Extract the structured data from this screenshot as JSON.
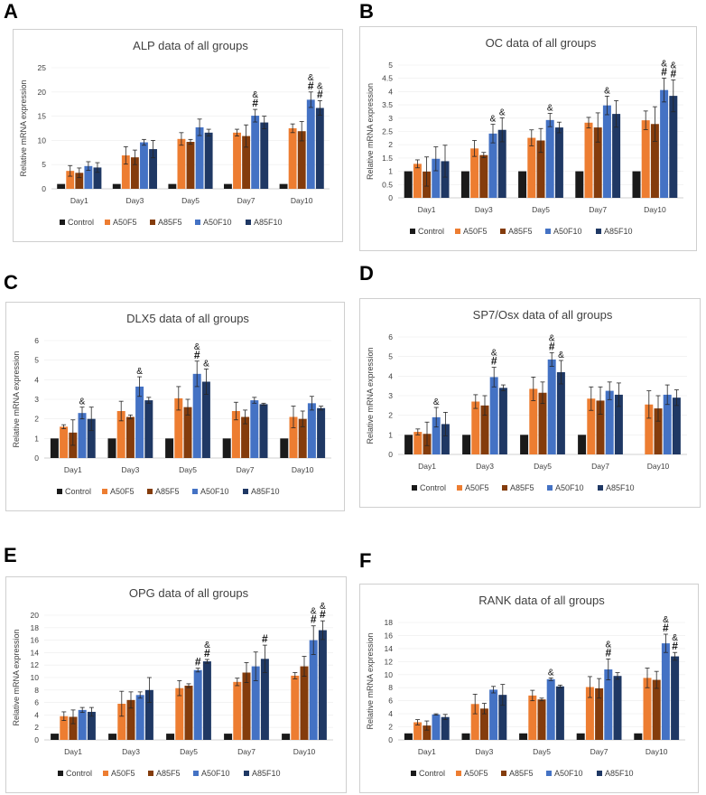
{
  "panels": [
    "A",
    "B",
    "C",
    "D",
    "E",
    "F"
  ],
  "colors": {
    "Control": "#1a1a1a",
    "A50F5": "#ed7d31",
    "A85F5": "#843c0c",
    "A50F10": "#4472c4",
    "A85F10": "#1f3864",
    "axis": "#d0d0d0",
    "text": "#404040",
    "error": "#262626"
  },
  "chart_data": [
    {
      "panel": "A",
      "type": "bar",
      "title": "ALP data of all groups",
      "ylabel": "Relative mRNA expression",
      "xlabel": "",
      "ylim": [
        0,
        25
      ],
      "yticks": [
        "0",
        "5",
        "10",
        "15",
        "20",
        "25"
      ],
      "categories": [
        "Day1",
        "Day3",
        "Day5",
        "Day7",
        "Day10"
      ],
      "series": [
        {
          "name": "Control",
          "values": [
            1,
            1,
            1,
            1,
            1
          ],
          "errors": [
            0,
            0,
            0,
            0,
            0
          ]
        },
        {
          "name": "A50F5",
          "values": [
            3.7,
            6.9,
            10.3,
            11.6,
            12.5
          ],
          "errors": [
            1.1,
            1.8,
            1.3,
            0.7,
            0.9
          ]
        },
        {
          "name": "A85F5",
          "values": [
            3.3,
            6.5,
            9.7,
            10.9,
            11.9
          ],
          "errors": [
            1.0,
            1.5,
            0.5,
            2.3,
            2.0
          ]
        },
        {
          "name": "A50F10",
          "values": [
            4.7,
            9.6,
            12.7,
            15.1,
            18.4
          ],
          "errors": [
            0.9,
            0.6,
            1.7,
            1.3,
            1.6
          ]
        },
        {
          "name": "A85F10",
          "values": [
            4.4,
            8.2,
            11.6,
            13.7,
            16.7
          ],
          "errors": [
            1.0,
            1.8,
            0.7,
            1.3,
            1.5
          ]
        }
      ],
      "annotations": [
        {
          "category": "Day7",
          "series": "A50F10",
          "text": "#"
        },
        {
          "category": "Day7",
          "series": "A50F10",
          "text": "&"
        },
        {
          "category": "Day10",
          "series": "A50F10",
          "text": "#"
        },
        {
          "category": "Day10",
          "series": "A50F10",
          "text": "&"
        },
        {
          "category": "Day10",
          "series": "A85F10",
          "text": "#"
        },
        {
          "category": "Day10",
          "series": "A85F10",
          "text": "&"
        }
      ]
    },
    {
      "panel": "B",
      "type": "bar",
      "title": "OC data of all groups",
      "ylabel": "Relative mRNA expression",
      "xlabel": "",
      "ylim": [
        0,
        5
      ],
      "yticks": [
        "0",
        "0.5",
        "1",
        "1.5",
        "2",
        "2.5",
        "3",
        "3.5",
        "4",
        "4.5",
        "5"
      ],
      "categories": [
        "Day1",
        "Day3",
        "Day5",
        "Day7",
        "Day10"
      ],
      "series": [
        {
          "name": "Control",
          "values": [
            1,
            1,
            1,
            1,
            1
          ],
          "errors": [
            0,
            0,
            0,
            0,
            0
          ]
        },
        {
          "name": "A50F5",
          "values": [
            1.28,
            1.86,
            2.26,
            2.83,
            2.92
          ],
          "errors": [
            0.15,
            0.3,
            0.3,
            0.2,
            0.35
          ]
        },
        {
          "name": "A85F5",
          "values": [
            0.99,
            1.61,
            2.16,
            2.65,
            2.78
          ],
          "errors": [
            0.55,
            0.1,
            0.45,
            0.55,
            0.65
          ]
        },
        {
          "name": "A50F10",
          "values": [
            1.47,
            2.42,
            2.93,
            3.48,
            4.06
          ],
          "errors": [
            0.45,
            0.35,
            0.25,
            0.35,
            0.45
          ]
        },
        {
          "name": "A85F10",
          "values": [
            1.38,
            2.56,
            2.65,
            3.16,
            3.84
          ],
          "errors": [
            0.6,
            0.45,
            0.2,
            0.5,
            0.6
          ]
        }
      ],
      "annotations": [
        {
          "category": "Day3",
          "series": "A50F10",
          "text": "&"
        },
        {
          "category": "Day3",
          "series": "A85F10",
          "text": "&"
        },
        {
          "category": "Day5",
          "series": "A50F10",
          "text": "&"
        },
        {
          "category": "Day7",
          "series": "A50F10",
          "text": "&"
        },
        {
          "category": "Day10",
          "series": "A50F10",
          "text": "#"
        },
        {
          "category": "Day10",
          "series": "A50F10",
          "text": "&"
        },
        {
          "category": "Day10",
          "series": "A85F10",
          "text": "#"
        },
        {
          "category": "Day10",
          "series": "A85F10",
          "text": "&"
        }
      ]
    },
    {
      "panel": "C",
      "type": "bar",
      "title": "DLX5 data of all groups",
      "ylabel": "Relative mRNA expression",
      "xlabel": "",
      "ylim": [
        0,
        6
      ],
      "yticks": [
        "0",
        "1",
        "2",
        "3",
        "4",
        "5",
        "6"
      ],
      "categories": [
        "Day1",
        "Day3",
        "Day5",
        "Day7",
        "Day10"
      ],
      "series": [
        {
          "name": "Control",
          "values": [
            1,
            1,
            1,
            1,
            1
          ],
          "errors": [
            0,
            0,
            0,
            0,
            0
          ]
        },
        {
          "name": "A50F5",
          "values": [
            1.6,
            2.4,
            3.05,
            2.4,
            2.1
          ],
          "errors": [
            0.1,
            0.5,
            0.6,
            0.45,
            0.55
          ]
        },
        {
          "name": "A85F5",
          "values": [
            1.3,
            2.1,
            2.6,
            2.1,
            2.0
          ],
          "errors": [
            0.65,
            0.1,
            0.4,
            0.35,
            0.4
          ]
        },
        {
          "name": "A50F10",
          "values": [
            2.3,
            3.65,
            4.3,
            2.95,
            2.8
          ],
          "errors": [
            0.3,
            0.5,
            0.65,
            0.15,
            0.35
          ]
        },
        {
          "name": "A85F10",
          "values": [
            2.0,
            2.95,
            3.9,
            2.75,
            2.55
          ],
          "errors": [
            0.6,
            0.15,
            0.65,
            0.05,
            0.1
          ]
        }
      ],
      "annotations": [
        {
          "category": "Day1",
          "series": "A50F10",
          "text": "&"
        },
        {
          "category": "Day3",
          "series": "A50F10",
          "text": "&"
        },
        {
          "category": "Day5",
          "series": "A50F10",
          "text": "#"
        },
        {
          "category": "Day5",
          "series": "A50F10",
          "text": "&"
        },
        {
          "category": "Day5",
          "series": "A85F10",
          "text": "&"
        }
      ]
    },
    {
      "panel": "D",
      "type": "bar",
      "title": "SP7/Osx data of all groups",
      "ylabel": "Relative mRNA expression",
      "xlabel": "",
      "ylim": [
        0,
        6
      ],
      "yticks": [
        "0",
        "1",
        "2",
        "3",
        "4",
        "5",
        "6"
      ],
      "categories": [
        "Day1",
        "Day3",
        "Day5",
        "Day7",
        "Day10"
      ],
      "series": [
        {
          "name": "Control",
          "values": [
            1,
            1,
            1,
            1,
            0
          ],
          "errors": [
            0,
            0,
            0,
            0,
            0
          ]
        },
        {
          "name": "A50F5",
          "values": [
            1.15,
            2.7,
            3.35,
            2.85,
            2.55
          ],
          "errors": [
            0.15,
            0.35,
            0.6,
            0.6,
            0.7
          ]
        },
        {
          "name": "A85F5",
          "values": [
            1.05,
            2.5,
            3.15,
            2.75,
            2.35
          ],
          "errors": [
            0.6,
            0.5,
            0.55,
            0.7,
            0.65
          ]
        },
        {
          "name": "A50F10",
          "values": [
            1.9,
            3.95,
            4.85,
            3.25,
            3.05
          ],
          "errors": [
            0.5,
            0.5,
            0.35,
            0.45,
            0.5
          ]
        },
        {
          "name": "A85F10",
          "values": [
            1.55,
            3.4,
            4.2,
            3.05,
            2.9
          ],
          "errors": [
            0.6,
            0.15,
            0.6,
            0.6,
            0.4
          ]
        }
      ],
      "annotations": [
        {
          "category": "Day1",
          "series": "A50F10",
          "text": "&"
        },
        {
          "category": "Day3",
          "series": "A50F10",
          "text": "#"
        },
        {
          "category": "Day3",
          "series": "A50F10",
          "text": "&"
        },
        {
          "category": "Day5",
          "series": "A50F10",
          "text": "#"
        },
        {
          "category": "Day5",
          "series": "A50F10",
          "text": "&"
        },
        {
          "category": "Day5",
          "series": "A85F10",
          "text": "&"
        }
      ]
    },
    {
      "panel": "E",
      "type": "bar",
      "title": "OPG data of all groups",
      "ylabel": "Relative mRNA expression",
      "xlabel": "",
      "ylim": [
        0,
        20
      ],
      "yticks": [
        "0",
        "2",
        "4",
        "6",
        "8",
        "10",
        "12",
        "14",
        "16",
        "18",
        "20"
      ],
      "categories": [
        "Day1",
        "Day3",
        "Day5",
        "Day7",
        "Day10"
      ],
      "series": [
        {
          "name": "Control",
          "values": [
            1,
            1,
            1,
            1,
            1
          ],
          "errors": [
            0,
            0,
            0,
            0,
            0
          ]
        },
        {
          "name": "A50F5",
          "values": [
            3.8,
            5.8,
            8.3,
            9.3,
            10.3
          ],
          "errors": [
            0.7,
            2.0,
            1.2,
            0.6,
            0.5
          ]
        },
        {
          "name": "A85F5",
          "values": [
            3.7,
            6.4,
            8.7,
            10.8,
            11.8
          ],
          "errors": [
            1.1,
            1.3,
            0.3,
            1.6,
            1.6
          ]
        },
        {
          "name": "A50F10",
          "values": [
            4.8,
            7.2,
            11.2,
            11.8,
            16.0
          ],
          "errors": [
            0.4,
            0.5,
            0.3,
            2.3,
            2.3
          ]
        },
        {
          "name": "A85F10",
          "values": [
            4.5,
            8.0,
            12.6,
            13.0,
            17.6
          ],
          "errors": [
            0.7,
            2.0,
            0.3,
            2.2,
            1.5
          ]
        }
      ],
      "annotations": [
        {
          "category": "Day5",
          "series": "A50F10",
          "text": "#"
        },
        {
          "category": "Day5",
          "series": "A85F10",
          "text": "#"
        },
        {
          "category": "Day5",
          "series": "A85F10",
          "text": "&"
        },
        {
          "category": "Day7",
          "series": "A85F10",
          "text": "#"
        },
        {
          "category": "Day10",
          "series": "A50F10",
          "text": "#"
        },
        {
          "category": "Day10",
          "series": "A50F10",
          "text": "&"
        },
        {
          "category": "Day10",
          "series": "A85F10",
          "text": "#"
        },
        {
          "category": "Day10",
          "series": "A85F10",
          "text": "&"
        }
      ]
    },
    {
      "panel": "F",
      "type": "bar",
      "title": "RANK data of all groups",
      "ylabel": "Relative mRNA expression",
      "xlabel": "",
      "ylim": [
        0,
        18
      ],
      "yticks": [
        "0",
        "2",
        "4",
        "6",
        "8",
        "10",
        "12",
        "14",
        "16",
        "18"
      ],
      "categories": [
        "Day1",
        "Day3",
        "Day5",
        "Day7",
        "Day10"
      ],
      "series": [
        {
          "name": "Control",
          "values": [
            1,
            1,
            1,
            1,
            1
          ],
          "errors": [
            0,
            0,
            0,
            0,
            0
          ]
        },
        {
          "name": "A50F5",
          "values": [
            2.7,
            5.5,
            6.8,
            8.1,
            9.5
          ],
          "errors": [
            0.4,
            1.5,
            0.8,
            1.6,
            1.5
          ]
        },
        {
          "name": "A85F5",
          "values": [
            2.2,
            4.8,
            6.2,
            7.9,
            9.2
          ],
          "errors": [
            0.7,
            0.8,
            0.2,
            1.5,
            1.3
          ]
        },
        {
          "name": "A50F10",
          "values": [
            3.9,
            7.7,
            9.3,
            10.8,
            14.8
          ],
          "errors": [
            0.1,
            0.5,
            0.2,
            1.6,
            1.4
          ]
        },
        {
          "name": "A85F10",
          "values": [
            3.5,
            6.9,
            8.2,
            9.8,
            12.8
          ],
          "errors": [
            0.4,
            1.6,
            0.2,
            0.5,
            0.6
          ]
        }
      ],
      "annotations": [
        {
          "category": "Day5",
          "series": "A50F10",
          "text": "&"
        },
        {
          "category": "Day7",
          "series": "A50F10",
          "text": "#"
        },
        {
          "category": "Day7",
          "series": "A50F10",
          "text": "&"
        },
        {
          "category": "Day10",
          "series": "A50F10",
          "text": "#"
        },
        {
          "category": "Day10",
          "series": "A50F10",
          "text": "&"
        },
        {
          "category": "Day10",
          "series": "A85F10",
          "text": "#"
        },
        {
          "category": "Day10",
          "series": "A85F10",
          "text": "&"
        }
      ]
    }
  ]
}
